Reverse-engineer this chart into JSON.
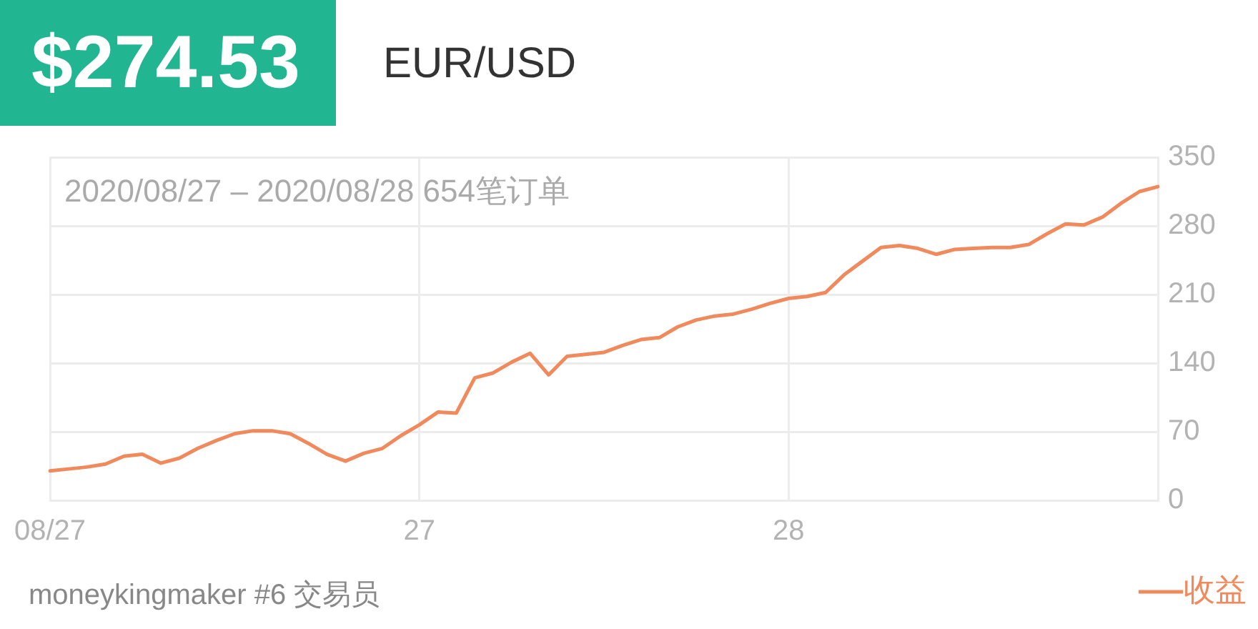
{
  "chart_data": {
    "type": "line",
    "title": "$274.53",
    "subtitle": "EUR/USD",
    "annotations": [
      "2020/08/27 – 2020/08/28 654笔订单",
      "moneykingmaker #6 交易员"
    ],
    "categories": [
      "08/27",
      null,
      null,
      null,
      null,
      null,
      null,
      null,
      null,
      null,
      null,
      null,
      null,
      null,
      null,
      null,
      null,
      null,
      null,
      null,
      "27",
      null,
      null,
      null,
      null,
      null,
      null,
      null,
      null,
      null,
      null,
      null,
      null,
      null,
      null,
      null,
      null,
      null,
      null,
      null,
      "28",
      null,
      null,
      null,
      null,
      null,
      null,
      null,
      null,
      null,
      null,
      null,
      null,
      null,
      null,
      null,
      null,
      null,
      null,
      null,
      null
    ],
    "series": [
      {
        "name": "收益",
        "color": "#f08a5d",
        "values": [
          30,
          32,
          34,
          37,
          45,
          47,
          38,
          43,
          53,
          61,
          68,
          71,
          71,
          68,
          58,
          47,
          40,
          48,
          53,
          66,
          77,
          90,
          89,
          125,
          130,
          141,
          150,
          128,
          147,
          149,
          151,
          158,
          164,
          166,
          177,
          184,
          188,
          190,
          195,
          201,
          206,
          208,
          212,
          230,
          244,
          258,
          260,
          257,
          251,
          256,
          257,
          258,
          258,
          261,
          272,
          282,
          281,
          289,
          303,
          315,
          320
        ]
      }
    ],
    "ylim": [
      0,
      350
    ],
    "yticks": [
      0,
      70,
      140,
      210,
      280,
      350
    ],
    "grid": true,
    "legend": "bottom right",
    "marker": "none"
  }
}
